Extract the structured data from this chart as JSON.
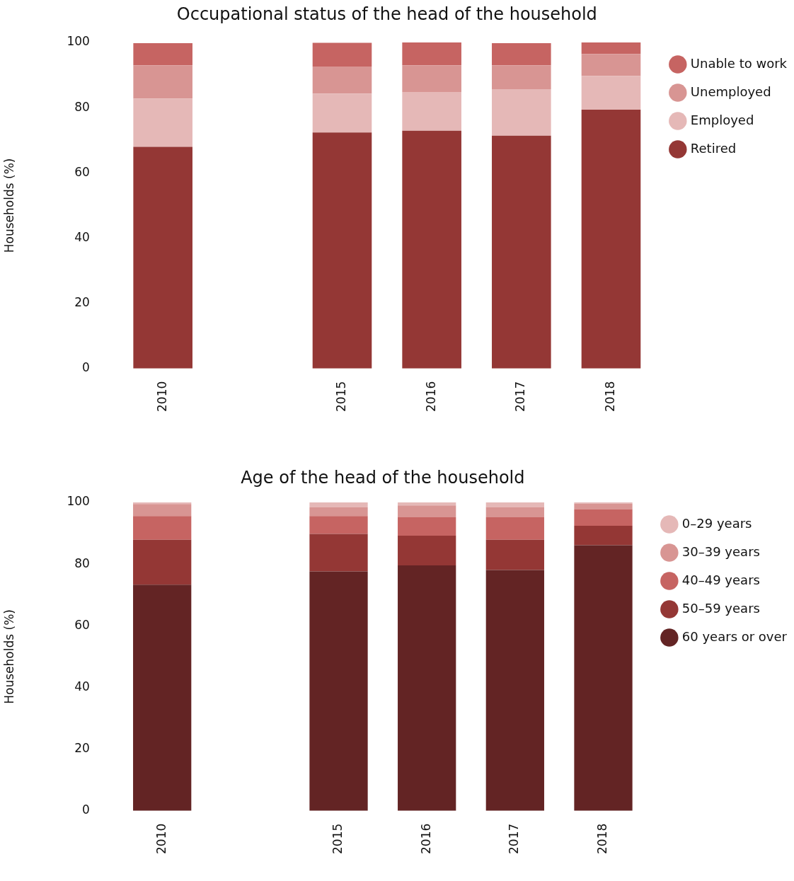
{
  "chart_data": [
    {
      "type": "bar",
      "title": "Occupational status of the head of the household",
      "ylabel": "Households (%)",
      "stacked": true,
      "categories": [
        "2010",
        null,
        "2015",
        "2016",
        "2017",
        "2018"
      ],
      "ylim": [
        0,
        100
      ],
      "yticks": [
        0,
        20,
        40,
        60,
        80,
        100
      ],
      "grid": false,
      "legend": "top right",
      "series": [
        {
          "name": "Retired",
          "color": "#943735",
          "values": [
            68.0,
            null,
            72.4,
            72.9,
            71.4,
            79.4
          ]
        },
        {
          "name": "Employed",
          "color": "#e5b8b7",
          "values": [
            14.8,
            null,
            11.9,
            11.9,
            14.3,
            10.3
          ]
        },
        {
          "name": "Unemployed",
          "color": "#d89593",
          "values": [
            10.2,
            null,
            8.3,
            8.2,
            7.3,
            6.8
          ]
        },
        {
          "name": "Unable to work",
          "color": "#c66462",
          "values": [
            6.8,
            null,
            7.3,
            7.4,
            6.8,
            3.9
          ]
        }
      ]
    },
    {
      "type": "bar",
      "title": "Age of the head of the household",
      "ylabel": "Households (%)",
      "stacked": true,
      "categories": [
        "2010",
        null,
        "2015",
        "2016",
        "2017",
        "2018"
      ],
      "ylim": [
        0,
        100
      ],
      "yticks": [
        0,
        20,
        40,
        60,
        80,
        100
      ],
      "grid": false,
      "legend": "top right",
      "series": [
        {
          "name": "60 years or over",
          "color": "#632424",
          "values": [
            73.3,
            null,
            77.6,
            79.6,
            78.1,
            86.1
          ]
        },
        {
          "name": "50–59 years",
          "color": "#943735",
          "values": [
            14.6,
            null,
            12.2,
            9.6,
            9.8,
            6.3
          ]
        },
        {
          "name": "40–49 years",
          "color": "#c66462",
          "values": [
            7.7,
            null,
            5.8,
            6.0,
            7.3,
            5.4
          ]
        },
        {
          "name": "30–39 years",
          "color": "#d89593",
          "values": [
            3.9,
            null,
            2.8,
            3.8,
            3.3,
            1.8
          ]
        },
        {
          "name": "0–29 years",
          "color": "#e5b8b7",
          "values": [
            0.5,
            null,
            1.6,
            1.1,
            1.6,
            0.5
          ]
        }
      ]
    }
  ]
}
